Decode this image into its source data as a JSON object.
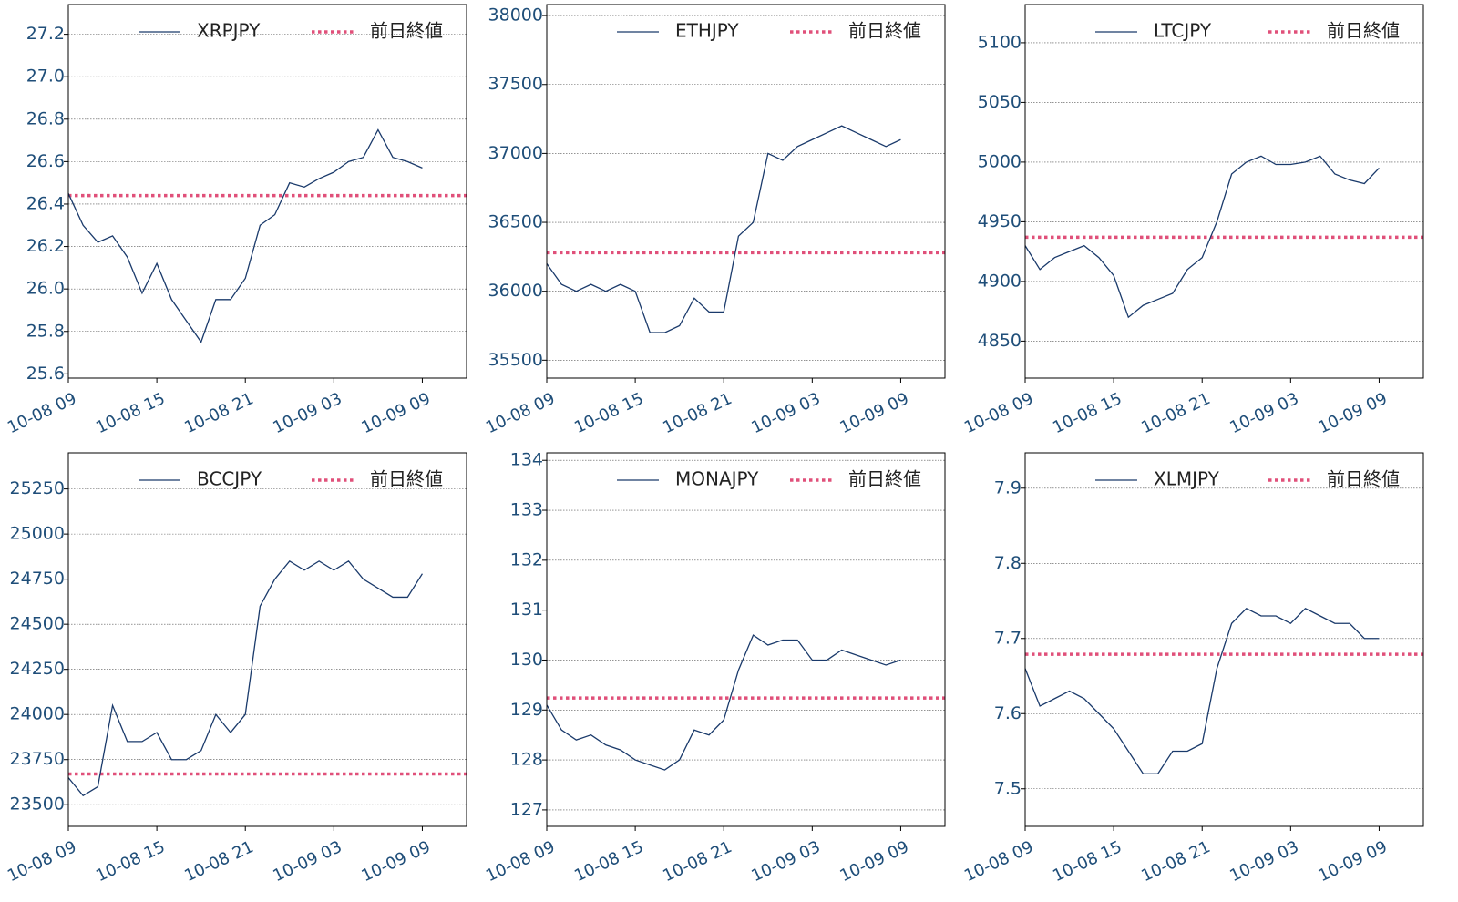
{
  "chart_data": [
    {
      "type": "line",
      "x": [
        "10-08 09",
        "10-08 10",
        "10-08 11",
        "10-08 12",
        "10-08 13",
        "10-08 14",
        "10-08 15",
        "10-08 16",
        "10-08 17",
        "10-08 18",
        "10-08 19",
        "10-08 20",
        "10-08 21",
        "10-08 22",
        "10-08 23",
        "10-09 00",
        "10-09 01",
        "10-09 02",
        "10-09 03",
        "10-09 04",
        "10-09 05",
        "10-09 06",
        "10-09 07",
        "10-09 08",
        "10-09 09"
      ],
      "series": [
        {
          "name": "XRPJPY",
          "color": "#1a3a6b",
          "values": [
            26.45,
            26.3,
            26.22,
            26.25,
            26.15,
            25.98,
            26.12,
            25.95,
            25.85,
            25.75,
            25.95,
            25.95,
            26.05,
            26.3,
            26.35,
            26.5,
            26.48,
            26.52,
            26.55,
            26.6,
            26.62,
            26.75,
            26.62,
            26.6,
            26.57
          ]
        }
      ],
      "reference": {
        "name": "前日終値",
        "value": 26.44,
        "color": "#e0507a"
      },
      "xlim": [
        "10-08 09",
        "10-09 12"
      ],
      "xticks": [
        "10-08 09",
        "10-08 15",
        "10-08 21",
        "10-09 03",
        "10-09 09"
      ],
      "ylim": [
        25.58,
        27.34
      ],
      "yticks": [
        {
          "value": 25.6,
          "label": "25.6"
        },
        {
          "value": 25.8,
          "label": "25.8"
        },
        {
          "value": 26.0,
          "label": "26.0"
        },
        {
          "value": 26.2,
          "label": "26.2"
        },
        {
          "value": 26.4,
          "label": "26.4"
        },
        {
          "value": 26.6,
          "label": "26.6"
        },
        {
          "value": 26.8,
          "label": "26.8"
        },
        {
          "value": 27.0,
          "label": "27.0"
        },
        {
          "value": 27.2,
          "label": "27.2"
        }
      ],
      "grid": true,
      "legend": "upper right"
    },
    {
      "type": "line",
      "x": [
        "10-08 09",
        "10-08 10",
        "10-08 11",
        "10-08 12",
        "10-08 13",
        "10-08 14",
        "10-08 15",
        "10-08 16",
        "10-08 17",
        "10-08 18",
        "10-08 19",
        "10-08 20",
        "10-08 21",
        "10-08 22",
        "10-08 23",
        "10-09 00",
        "10-09 01",
        "10-09 02",
        "10-09 03",
        "10-09 04",
        "10-09 05",
        "10-09 06",
        "10-09 07",
        "10-09 08",
        "10-09 09"
      ],
      "series": [
        {
          "name": "ETHJPY",
          "color": "#1a3a6b",
          "values": [
            36200,
            36050,
            36000,
            36050,
            36000,
            36050,
            36000,
            35700,
            35700,
            35750,
            35950,
            35850,
            35850,
            36400,
            36500,
            37000,
            36950,
            37050,
            37100,
            37150,
            37200,
            37150,
            37100,
            37050,
            37100
          ]
        }
      ],
      "reference": {
        "name": "前日終値",
        "value": 36280,
        "color": "#e0507a"
      },
      "xlim": [
        "10-08 09",
        "10-09 12"
      ],
      "xticks": [
        "10-08 09",
        "10-08 15",
        "10-08 21",
        "10-09 03",
        "10-09 09"
      ],
      "ylim": [
        35370,
        38080
      ],
      "yticks": [
        35500,
        36000,
        36500,
        37000,
        37500,
        38000
      ],
      "grid": true,
      "legend": "upper right"
    },
    {
      "type": "line",
      "x": [
        "10-08 09",
        "10-08 10",
        "10-08 11",
        "10-08 12",
        "10-08 13",
        "10-08 14",
        "10-08 15",
        "10-08 16",
        "10-08 17",
        "10-08 18",
        "10-08 19",
        "10-08 20",
        "10-08 21",
        "10-08 22",
        "10-08 23",
        "10-09 00",
        "10-09 01",
        "10-09 02",
        "10-09 03",
        "10-09 04",
        "10-09 05",
        "10-09 06",
        "10-09 07",
        "10-09 08",
        "10-09 09"
      ],
      "series": [
        {
          "name": "LTCJPY",
          "color": "#1a3a6b",
          "values": [
            4930,
            4910,
            4920,
            4925,
            4930,
            4920,
            4905,
            4870,
            4880,
            4885,
            4890,
            4910,
            4920,
            4950,
            4990,
            5000,
            5005,
            4998,
            4998,
            5000,
            5005,
            4990,
            4985,
            4982,
            4995
          ]
        }
      ],
      "reference": {
        "name": "前日終値",
        "value": 4937,
        "color": "#e0507a"
      },
      "xlim": [
        "10-08 09",
        "10-09 12"
      ],
      "xticks": [
        "10-08 09",
        "10-08 15",
        "10-08 21",
        "10-09 03",
        "10-09 09"
      ],
      "ylim": [
        4819,
        5132
      ],
      "yticks": [
        4850,
        4900,
        4950,
        5000,
        5050,
        5100
      ],
      "grid": true,
      "legend": "upper right"
    },
    {
      "type": "line",
      "x": [
        "10-08 09",
        "10-08 10",
        "10-08 11",
        "10-08 12",
        "10-08 13",
        "10-08 14",
        "10-08 15",
        "10-08 16",
        "10-08 17",
        "10-08 18",
        "10-08 19",
        "10-08 20",
        "10-08 21",
        "10-08 22",
        "10-08 23",
        "10-09 00",
        "10-09 01",
        "10-09 02",
        "10-09 03",
        "10-09 04",
        "10-09 05",
        "10-09 06",
        "10-09 07",
        "10-09 08",
        "10-09 09"
      ],
      "series": [
        {
          "name": "BCCJPY",
          "color": "#1a3a6b",
          "values": [
            23650,
            23550,
            23600,
            24050,
            23850,
            23850,
            23900,
            23750,
            23750,
            23800,
            24000,
            23900,
            24000,
            24600,
            24750,
            24850,
            24800,
            24850,
            24800,
            24850,
            24750,
            24700,
            24650,
            24650,
            24780
          ]
        }
      ],
      "reference": {
        "name": "前日終値",
        "value": 23670,
        "color": "#e0507a"
      },
      "xlim": [
        "10-08 09",
        "10-09 12"
      ],
      "xticks": [
        "10-08 09",
        "10-08 15",
        "10-08 21",
        "10-09 03",
        "10-09 09"
      ],
      "ylim": [
        23380,
        25450
      ],
      "yticks": [
        23500,
        23750,
        24000,
        24250,
        24500,
        24750,
        25000,
        25250
      ],
      "grid": true,
      "legend": "upper right"
    },
    {
      "type": "line",
      "x": [
        "10-08 09",
        "10-08 10",
        "10-08 11",
        "10-08 12",
        "10-08 13",
        "10-08 14",
        "10-08 15",
        "10-08 16",
        "10-08 17",
        "10-08 18",
        "10-08 19",
        "10-08 20",
        "10-08 21",
        "10-08 22",
        "10-08 23",
        "10-09 00",
        "10-09 01",
        "10-09 02",
        "10-09 03",
        "10-09 04",
        "10-09 05",
        "10-09 06",
        "10-09 07",
        "10-09 08",
        "10-09 09"
      ],
      "series": [
        {
          "name": "MONAJPY",
          "color": "#1a3a6b",
          "values": [
            129.1,
            128.6,
            128.4,
            128.5,
            128.3,
            128.2,
            128.0,
            127.9,
            127.8,
            128.0,
            128.6,
            128.5,
            128.8,
            129.8,
            130.5,
            130.3,
            130.4,
            130.4,
            130.0,
            130.0,
            130.2,
            130.1,
            130.0,
            129.9,
            130.0
          ]
        }
      ],
      "reference": {
        "name": "前日終値",
        "value": 129.24,
        "color": "#e0507a"
      },
      "xlim": [
        "10-08 09",
        "10-09 12"
      ],
      "xticks": [
        "10-08 09",
        "10-08 15",
        "10-08 21",
        "10-09 03",
        "10-09 09"
      ],
      "ylim": [
        126.67,
        134.15
      ],
      "yticks": [
        127,
        128,
        129,
        130,
        131,
        132,
        133,
        134
      ],
      "grid": true,
      "legend": "upper right"
    },
    {
      "type": "line",
      "x": [
        "10-08 09",
        "10-08 10",
        "10-08 11",
        "10-08 12",
        "10-08 13",
        "10-08 14",
        "10-08 15",
        "10-08 16",
        "10-08 17",
        "10-08 18",
        "10-08 19",
        "10-08 20",
        "10-08 21",
        "10-08 22",
        "10-08 23",
        "10-09 00",
        "10-09 01",
        "10-09 02",
        "10-09 03",
        "10-09 04",
        "10-09 05",
        "10-09 06",
        "10-09 07",
        "10-09 08",
        "10-09 09"
      ],
      "series": [
        {
          "name": "XLMJPY",
          "color": "#1a3a6b",
          "values": [
            7.66,
            7.61,
            7.62,
            7.63,
            7.62,
            7.6,
            7.58,
            7.55,
            7.52,
            7.52,
            7.55,
            7.55,
            7.56,
            7.66,
            7.72,
            7.74,
            7.73,
            7.73,
            7.72,
            7.74,
            7.73,
            7.72,
            7.72,
            7.7,
            7.7
          ]
        }
      ],
      "reference": {
        "name": "前日終値",
        "value": 7.679,
        "color": "#e0507a"
      },
      "xlim": [
        "10-08 09",
        "10-09 12"
      ],
      "xticks": [
        "10-08 09",
        "10-08 15",
        "10-08 21",
        "10-09 03",
        "10-09 09"
      ],
      "ylim": [
        7.45,
        7.947
      ],
      "yticks": [
        7.5,
        7.6,
        7.7,
        7.8,
        7.9
      ],
      "grid": true,
      "legend": "upper right"
    }
  ]
}
